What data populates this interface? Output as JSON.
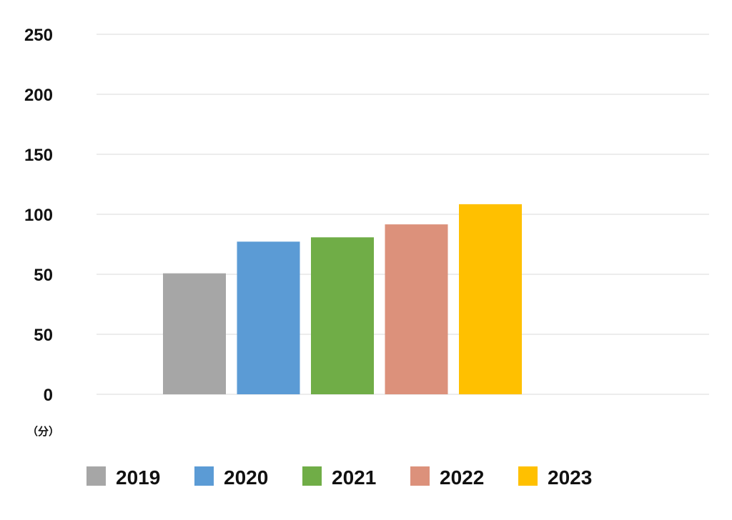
{
  "chart_data": {
    "type": "bar",
    "categories": [
      "2019",
      "2020",
      "2021",
      "2022",
      "2023"
    ],
    "values": [
      84,
      106,
      109,
      118,
      132
    ],
    "colors": [
      "#a6a6a6",
      "#5b9bd5",
      "#70ad47",
      "#dc917b",
      "#ffc000"
    ],
    "y_ticks": [
      "0",
      "50",
      "50",
      "100",
      "150",
      "200",
      "250"
    ],
    "y_unit": "（分）",
    "ylim": [
      0,
      250
    ],
    "grid": true,
    "legend": {
      "position": "bottom",
      "entries": [
        "2019",
        "2020",
        "2021",
        "2022",
        "2023"
      ]
    }
  }
}
